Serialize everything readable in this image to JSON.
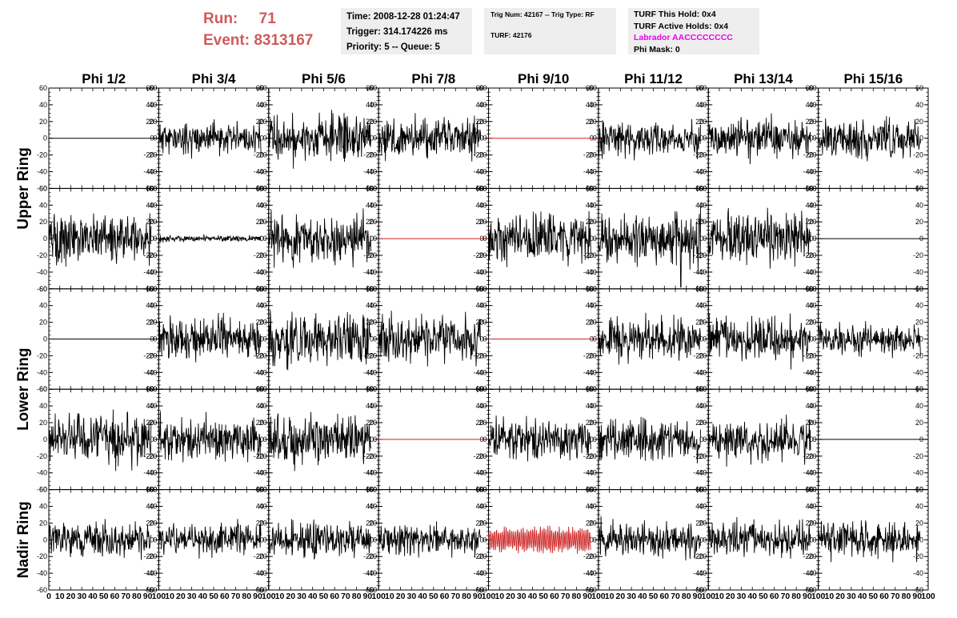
{
  "header": {
    "run_label": "Run:",
    "run_value": "71",
    "event_label": "Event:",
    "event_value": "8313167"
  },
  "info_box_1": {
    "time": "Time: 2008-12-28 01:24:47",
    "trigger": "Trigger: 314.174226 ms",
    "priority": "Priority: 5 -- Queue: 5"
  },
  "info_box_2": {
    "trig": "Trig Num: 42167 -- Trig Type: RF",
    "turf": "TURF: 42176"
  },
  "info_box_3": {
    "this_hold": "TURF This Hold: 0x4",
    "active_holds": "TURF Active Holds: 0x4",
    "labrador": "Labrador AACCCCCCCC",
    "phi_mask": "Phi Mask: 0"
  },
  "colors": {
    "trace": "#000000",
    "highlight": "#cc2222",
    "header_red": "#d05a5a",
    "magenta": "#ee00ee",
    "box_bg": "#eeeeee"
  },
  "chart_data": {
    "type": "line",
    "columns": [
      "Phi 1/2",
      "Phi 3/4",
      "Phi 5/6",
      "Phi 7/8",
      "Phi 9/10",
      "Phi 11/12",
      "Phi 13/14",
      "Phi 15/16"
    ],
    "ring_labels": [
      {
        "label": "Upper Ring",
        "rows": [
          0,
          1
        ]
      },
      {
        "label": "Lower Ring",
        "rows": [
          2,
          3
        ]
      },
      {
        "label": "Nadir Ring",
        "rows": [
          4
        ]
      }
    ],
    "ylim": [
      -60,
      60
    ],
    "xlim": [
      0,
      100
    ],
    "y_ticks": [
      60,
      40,
      20,
      0,
      -20,
      -40,
      -60
    ],
    "x_ticks": [
      0,
      10,
      20,
      30,
      40,
      50,
      60,
      70,
      80,
      90,
      100
    ],
    "rows": [
      [
        {
          "state": "flat"
        },
        {
          "amp": 10,
          "seed": 11
        },
        {
          "amp": 15,
          "seed": 12
        },
        {
          "amp": 13,
          "seed": 13
        },
        {
          "state": "flat",
          "color": "highlight"
        },
        {
          "amp": 11,
          "seed": 15
        },
        {
          "amp": 12,
          "seed": 16
        },
        {
          "amp": 12,
          "seed": 17
        }
      ],
      [
        {
          "amp": 15,
          "seed": 21
        },
        {
          "amp": 2,
          "seed": 22
        },
        {
          "amp": 16,
          "seed": 23
        },
        {
          "state": "flat",
          "color": "highlight"
        },
        {
          "amp": 15,
          "seed": 25
        },
        {
          "amp": 16,
          "seed": 26,
          "spike": {
            "x": 75,
            "y": -58
          }
        },
        {
          "amp": 15,
          "seed": 27
        },
        {
          "state": "flat"
        }
      ],
      [
        {
          "state": "flat"
        },
        {
          "amp": 13,
          "seed": 31
        },
        {
          "amp": 16,
          "seed": 32
        },
        {
          "amp": 15,
          "seed": 33
        },
        {
          "state": "flat",
          "color": "highlight"
        },
        {
          "amp": 13,
          "seed": 35
        },
        {
          "amp": 15,
          "seed": 36
        },
        {
          "amp": 10,
          "seed": 37
        }
      ],
      [
        {
          "amp": 16,
          "seed": 41
        },
        {
          "amp": 14,
          "seed": 42
        },
        {
          "amp": 16,
          "seed": 43
        },
        {
          "state": "flat",
          "color": "highlight"
        },
        {
          "amp": 14,
          "seed": 45
        },
        {
          "amp": 13,
          "seed": 46
        },
        {
          "amp": 13,
          "seed": 47
        },
        {
          "state": "flat"
        }
      ],
      [
        {
          "amp": 11,
          "seed": 51
        },
        {
          "amp": 11,
          "seed": 52
        },
        {
          "amp": 11,
          "seed": 53
        },
        {
          "amp": 10,
          "seed": 54
        },
        {
          "amp": 16,
          "seed": 55,
          "color": "highlight",
          "dense": true
        },
        {
          "amp": 11,
          "seed": 56
        },
        {
          "amp": 12,
          "seed": 57
        },
        {
          "amp": 12,
          "seed": 58
        }
      ]
    ]
  }
}
